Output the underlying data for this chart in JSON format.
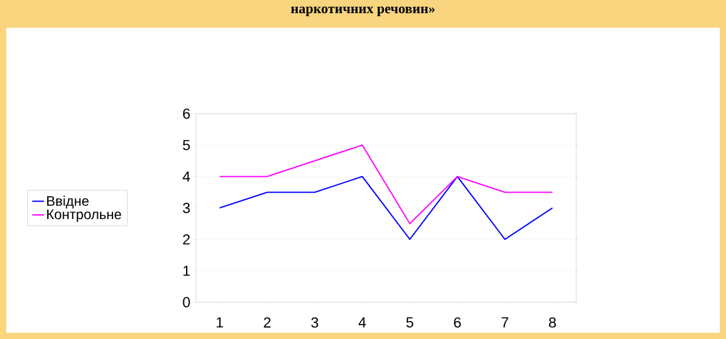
{
  "chart_data": {
    "type": "line",
    "title": "наркотичних речовин»",
    "categories": [
      "1",
      "2",
      "3",
      "4",
      "5",
      "6",
      "7",
      "8"
    ],
    "series": [
      {
        "name": "Ввідне",
        "color": "#0000ff",
        "values": [
          3,
          3.5,
          3.5,
          4,
          2,
          4,
          2,
          3
        ]
      },
      {
        "name": "Контрольне",
        "color": "#ff00ff",
        "values": [
          4,
          4,
          4.5,
          5,
          2.5,
          4,
          3.5,
          3.5
        ]
      }
    ],
    "ylim": [
      0,
      6
    ],
    "yticks": [
      0,
      1,
      2,
      3,
      4,
      5,
      6
    ],
    "grid": "y",
    "legend": "left",
    "marker": "none",
    "line_style": "solid"
  }
}
